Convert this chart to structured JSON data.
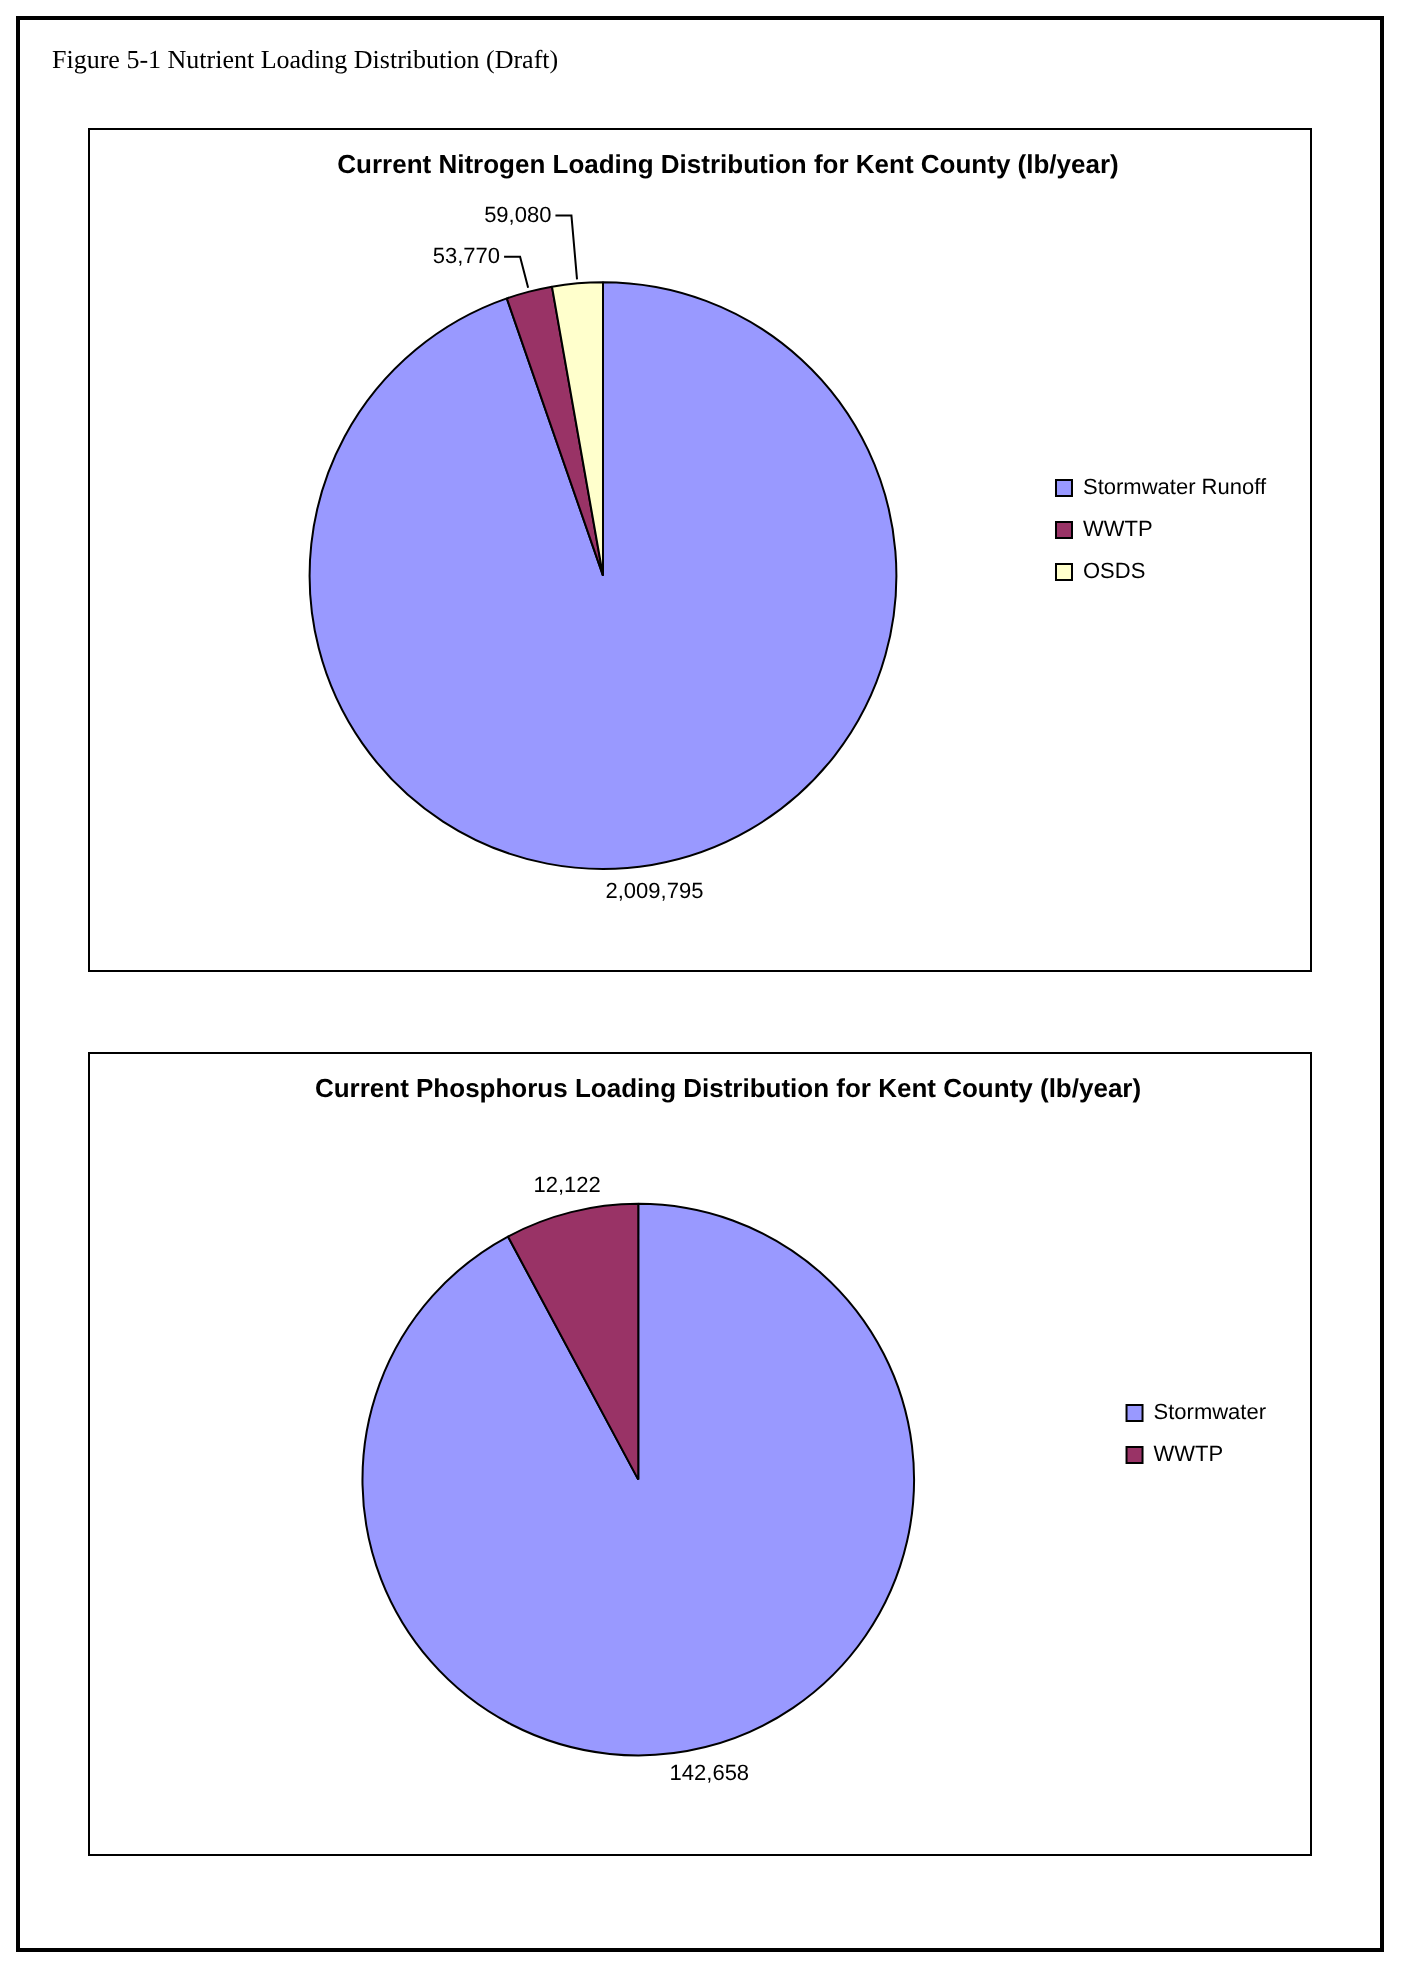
{
  "chart_data": [
    {
      "type": "pie",
      "title": "Current Nitrogen Loading Distribution for Kent County (lb/year)",
      "annotations": [
        "Figure 5-1 Nutrient Loading Distribution (Draft)"
      ],
      "categories": [
        "Stormwater Runoff",
        "WWTP",
        "OSDS"
      ],
      "values": [
        2009795,
        53770,
        59080
      ],
      "colors": [
        "#9999ff",
        "#993366",
        "#ffffcc"
      ],
      "value_labels": [
        "2,009,795",
        "53,770",
        "59,080"
      ],
      "legend": "right"
    },
    {
      "type": "pie",
      "title": "Current Phosphorus Loading Distribution for Kent County (lb/year)",
      "categories": [
        "Stormwater",
        "WWTP"
      ],
      "values": [
        142658,
        12122
      ],
      "colors": [
        "#9999ff",
        "#993366"
      ],
      "value_labels": [
        "142,658",
        "12,122"
      ],
      "legend": "right"
    }
  ]
}
